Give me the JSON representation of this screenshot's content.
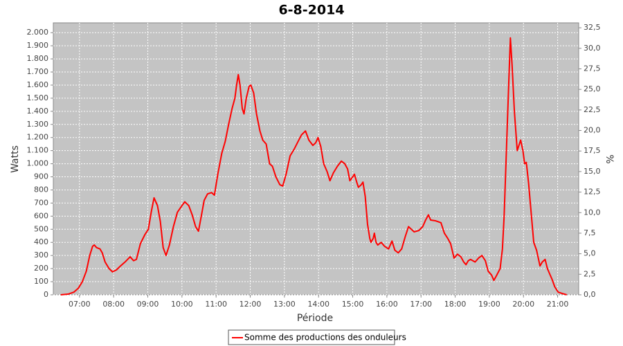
{
  "chart_data": {
    "type": "line",
    "title": "6-8-2014",
    "x_label": "Période",
    "y_label": "Watts",
    "y2_label": "%",
    "x": [
      "06:27",
      "06:40",
      "06:50",
      "06:58",
      "07:05",
      "07:12",
      "07:18",
      "07:23",
      "07:26",
      "07:30",
      "07:36",
      "07:40",
      "07:45",
      "07:52",
      "07:58",
      "08:05",
      "08:12",
      "08:20",
      "08:29",
      "08:35",
      "08:40",
      "08:47",
      "08:55",
      "09:01",
      "09:06",
      "09:11",
      "09:17",
      "09:22",
      "09:27",
      "09:32",
      "09:38",
      "09:45",
      "09:52",
      "10:00",
      "10:05",
      "10:12",
      "10:18",
      "10:24",
      "10:29",
      "10:34",
      "10:39",
      "10:45",
      "10:52",
      "10:57",
      "11:03",
      "11:10",
      "11:16",
      "11:22",
      "11:28",
      "11:33",
      "11:36",
      "11:39",
      "11:42",
      "11:46",
      "11:49",
      "11:53",
      "11:58",
      "12:01",
      "12:06",
      "12:11",
      "12:17",
      "12:22",
      "12:28",
      "12:34",
      "12:39",
      "12:45",
      "12:52",
      "12:57",
      "13:03",
      "13:10",
      "13:17",
      "13:24",
      "13:30",
      "13:37",
      "13:43",
      "13:50",
      "13:55",
      "13:59",
      "14:04",
      "14:09",
      "14:15",
      "14:20",
      "14:26",
      "14:33",
      "14:40",
      "14:46",
      "14:51",
      "14:55",
      "15:00",
      "15:03",
      "15:07",
      "15:10",
      "15:15",
      "15:18",
      "15:22",
      "15:26",
      "15:30",
      "15:32",
      "15:36",
      "15:38",
      "15:41",
      "15:44",
      "15:50",
      "15:56",
      "16:03",
      "16:09",
      "16:14",
      "16:20",
      "16:26",
      "16:32",
      "16:38",
      "16:43",
      "16:48",
      "16:56",
      "17:03",
      "17:08",
      "17:13",
      "17:17",
      "17:25",
      "17:35",
      "17:41",
      "17:47",
      "17:52",
      "17:58",
      "18:04",
      "18:10",
      "18:15",
      "18:19",
      "18:23",
      "18:27",
      "18:35",
      "18:41",
      "18:47",
      "18:53",
      "18:58",
      "19:04",
      "19:08",
      "19:13",
      "19:19",
      "19:23",
      "19:26",
      "19:30",
      "19:34",
      "19:37",
      "19:40",
      "19:44",
      "19:49",
      "19:52",
      "19:55",
      "19:59",
      "20:02",
      "20:05",
      "20:09",
      "20:14",
      "20:18",
      "20:23",
      "20:29",
      "20:33",
      "20:38",
      "20:42",
      "20:47",
      "20:50",
      "20:55",
      "21:01",
      "21:08",
      "21:16"
    ],
    "series": [
      {
        "name": "Somme des productions des onduleurs",
        "color": "#ff0000",
        "values": [
          0,
          5,
          20,
          50,
          100,
          180,
          300,
          370,
          380,
          360,
          350,
          320,
          250,
          200,
          175,
          190,
          220,
          250,
          290,
          260,
          270,
          390,
          460,
          500,
          630,
          740,
          680,
          560,
          360,
          300,
          380,
          520,
          630,
          680,
          710,
          680,
          610,
          520,
          485,
          600,
          720,
          770,
          780,
          760,
          920,
          1080,
          1170,
          1300,
          1420,
          1500,
          1600,
          1680,
          1600,
          1420,
          1380,
          1500,
          1590,
          1600,
          1540,
          1380,
          1250,
          1180,
          1150,
          1000,
          980,
          900,
          840,
          830,
          920,
          1060,
          1110,
          1170,
          1220,
          1250,
          1180,
          1140,
          1160,
          1200,
          1130,
          1000,
          940,
          870,
          930,
          980,
          1020,
          1000,
          960,
          870,
          900,
          920,
          860,
          820,
          840,
          860,
          750,
          540,
          430,
          400,
          430,
          470,
          400,
          380,
          400,
          370,
          350,
          410,
          340,
          320,
          350,
          440,
          520,
          500,
          480,
          490,
          520,
          570,
          610,
          570,
          565,
          550,
          470,
          430,
          390,
          280,
          310,
          290,
          250,
          230,
          260,
          270,
          250,
          280,
          300,
          260,
          180,
          150,
          110,
          150,
          200,
          350,
          600,
          1100,
          1600,
          1960,
          1750,
          1400,
          1100,
          1140,
          1180,
          1100,
          1000,
          1010,
          850,
          600,
          400,
          340,
          220,
          250,
          270,
          200,
          150,
          120,
          60,
          20,
          10,
          0
        ]
      }
    ],
    "xlim": [
      "06:14",
      "21:37"
    ],
    "xticks": [
      "07:00",
      "08:00",
      "09:00",
      "10:00",
      "11:00",
      "12:00",
      "13:00",
      "14:00",
      "15:00",
      "16:00",
      "17:00",
      "18:00",
      "19:00",
      "20:00",
      "21:00"
    ],
    "ylim": [
      0,
      2075
    ],
    "yticks": [
      0,
      100,
      200,
      300,
      400,
      500,
      600,
      700,
      800,
      900,
      {
        "value": 1000,
        "label": "1.000"
      },
      {
        "value": 1100,
        "label": "1.100"
      },
      {
        "value": 1200,
        "label": "1.200"
      },
      {
        "value": 1300,
        "label": "1.300"
      },
      {
        "value": 1400,
        "label": "1.400"
      },
      {
        "value": 1500,
        "label": "1.500"
      },
      {
        "value": 1600,
        "label": "1.600"
      },
      {
        "value": 1700,
        "label": "1.700"
      },
      {
        "value": 1800,
        "label": "1.800"
      },
      {
        "value": 1900,
        "label": "1.900"
      },
      {
        "value": 2000,
        "label": "2.000"
      }
    ],
    "y2lim": [
      0,
      33.1
    ],
    "y2ticks": [
      {
        "value": 0,
        "label": "0,0"
      },
      {
        "value": 2.5,
        "label": "2,5"
      },
      {
        "value": 5,
        "label": "5,0"
      },
      {
        "value": 7.5,
        "label": "7,5"
      },
      {
        "value": 10,
        "label": "10,0"
      },
      {
        "value": 12.5,
        "label": "12,5"
      },
      {
        "value": 15,
        "label": "15,0"
      },
      {
        "value": 17.5,
        "label": "17,5"
      },
      {
        "value": 20,
        "label": "20,0"
      },
      {
        "value": 22.5,
        "label": "22,5"
      },
      {
        "value": 25,
        "label": "25,0"
      },
      {
        "value": 27.5,
        "label": "27,5"
      },
      {
        "value": 30,
        "label": "30,0"
      },
      {
        "value": 32.5,
        "label": "32,5"
      }
    ],
    "grid": true,
    "legend": "bottom"
  }
}
